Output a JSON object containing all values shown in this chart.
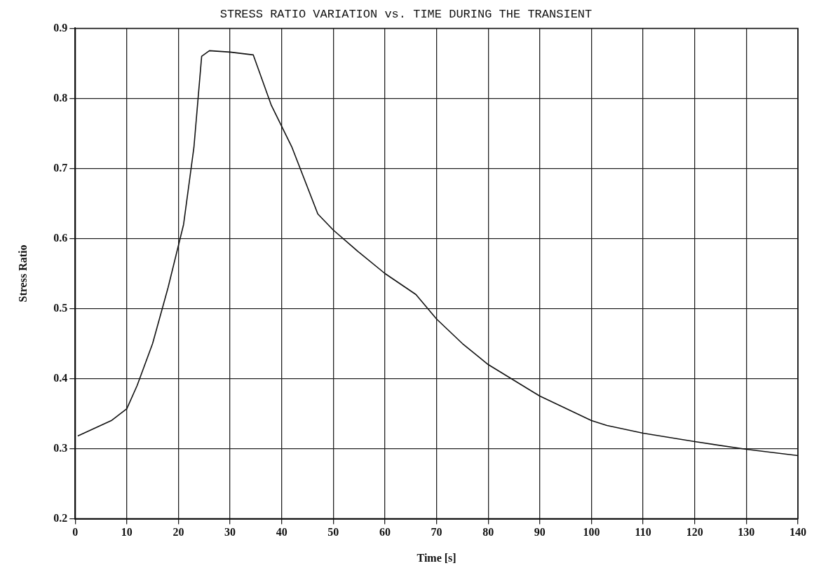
{
  "chart_data": {
    "type": "line",
    "title": "STRESS RATIO VARIATION vs. TIME DURING THE TRANSIENT",
    "xlabel": "Time [s]",
    "ylabel": "Stress Ratio",
    "x": [
      0.5,
      7,
      10,
      12,
      15,
      18,
      21,
      23,
      24.5,
      26,
      30,
      34.5,
      38,
      42,
      47,
      50,
      55,
      60,
      66,
      70,
      75,
      80,
      90,
      100,
      103,
      110,
      120,
      130,
      140
    ],
    "series": [
      {
        "color": "#111111",
        "values": [
          0.318,
          0.34,
          0.357,
          0.39,
          0.45,
          0.53,
          0.62,
          0.73,
          0.86,
          0.868,
          0.866,
          0.862,
          0.79,
          0.73,
          0.635,
          0.612,
          0.58,
          0.55,
          0.52,
          0.485,
          0.45,
          0.42,
          0.375,
          0.34,
          0.333,
          0.322,
          0.31,
          0.299,
          0.29
        ]
      }
    ],
    "xlim": [
      0,
      140
    ],
    "xticks": [
      0,
      10,
      20,
      30,
      40,
      50,
      60,
      70,
      80,
      90,
      100,
      110,
      120,
      130,
      140
    ],
    "ylim": [
      0.2,
      0.9
    ],
    "yticks": [
      0.2,
      0.3,
      0.4,
      0.5,
      0.6,
      0.7,
      0.8,
      0.9
    ],
    "grid": true,
    "legend": false,
    "marker": "none",
    "line_style": "solid"
  }
}
